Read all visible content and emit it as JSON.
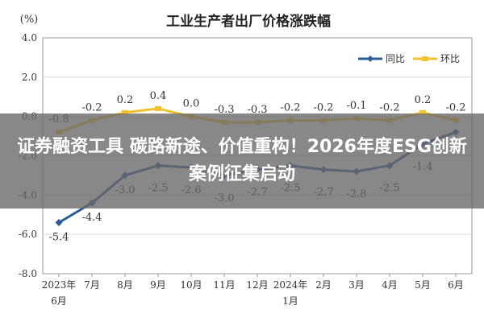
{
  "chart_data": {
    "type": "line",
    "title": "工业生产者出厂价格涨跌幅",
    "ylabel": "(%)",
    "xlabel": "",
    "ylim": [
      -8.0,
      4.0
    ],
    "yticks": [
      "4.0",
      "2.0",
      "0.0",
      "-2.0",
      "-4.0",
      "-6.0",
      "-8.0"
    ],
    "categories": [
      "2023年6月",
      "7月",
      "8月",
      "9月",
      "10月",
      "11月",
      "12月",
      "2024年1月",
      "2月",
      "3月",
      "4月",
      "5月",
      "6月"
    ],
    "category_labels": [
      [
        "2023年",
        "6月"
      ],
      [
        "7月"
      ],
      [
        "8月"
      ],
      [
        "9月"
      ],
      [
        "10月"
      ],
      [
        "11月"
      ],
      [
        "12月"
      ],
      [
        "2024年",
        "1月"
      ],
      [
        "2月"
      ],
      [
        "3月"
      ],
      [
        "4月"
      ],
      [
        "5月"
      ],
      [
        "6月"
      ]
    ],
    "grid": "horizontal",
    "legend_position": "top-right",
    "series": [
      {
        "name": "同比",
        "color": "#2e5c9a",
        "values": [
          -5.4,
          -4.4,
          -3.0,
          -2.5,
          -2.6,
          -3.0,
          -2.7,
          -2.5,
          -2.7,
          -2.8,
          -2.5,
          -1.4,
          -0.8
        ],
        "labels": [
          "-5.4",
          "-4.4",
          "-3.0",
          "-2.5",
          "-2.6",
          "-3.0",
          "-2.7",
          "-2.5",
          "-2.7",
          "-2.8",
          "-2.5",
          "-1.4",
          "-0.8"
        ]
      },
      {
        "name": "环比",
        "color": "#f2c12e",
        "values": [
          -0.8,
          -0.2,
          0.2,
          0.4,
          0.0,
          -0.3,
          -0.3,
          -0.2,
          -0.2,
          -0.1,
          -0.2,
          0.2,
          -0.2
        ],
        "labels": [
          "-0.8",
          "-0.2",
          "0.2",
          "0.4",
          "0.0",
          "-0.3",
          "-0.3",
          "-0.2",
          "-0.2",
          "-0.1",
          "-0.2",
          "0.2",
          "-0.2"
        ]
      }
    ]
  },
  "banner": {
    "text": "证券融资工具 碳路新途、价值重构！2026年度ESG创新案例征集启动"
  }
}
